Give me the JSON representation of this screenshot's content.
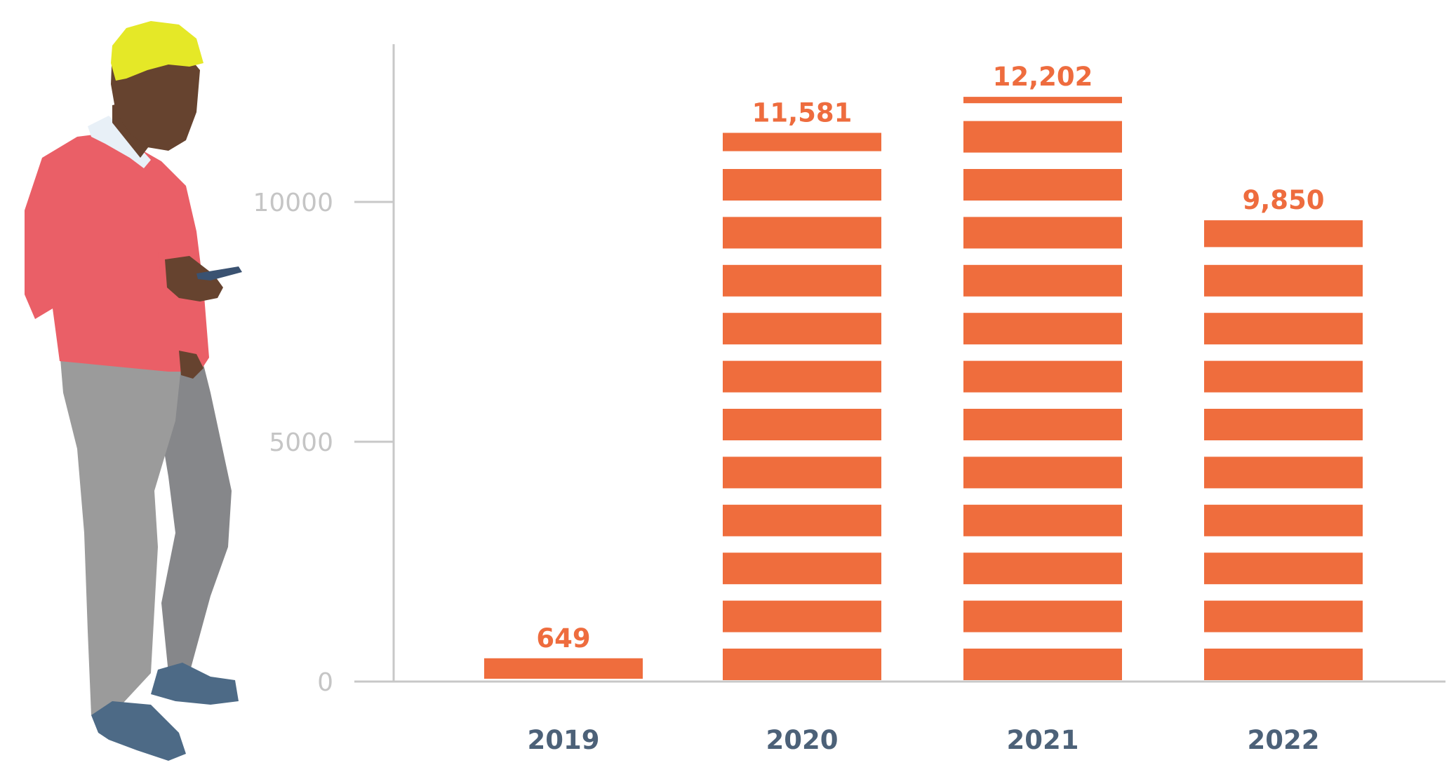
{
  "chart_data": {
    "type": "bar",
    "categories": [
      "2019",
      "2020",
      "2021",
      "2022"
    ],
    "values": [
      649,
      11581,
      12202,
      9850
    ],
    "value_labels": [
      "649",
      "11,581",
      "12,202",
      "9,850"
    ],
    "y_ticks": [
      {
        "value": 0,
        "label": "0"
      },
      {
        "value": 5000,
        "label": "5000"
      },
      {
        "value": 10000,
        "label": "10000"
      }
    ],
    "ylim": [
      0,
      13500
    ],
    "title": "",
    "xlabel": "",
    "ylabel": "",
    "grid": false,
    "bar_style": "stacked-stripes",
    "stripe_unit": 1000
  },
  "colors": {
    "bar": "#ef6d3d",
    "axis": "#c8c8c8",
    "tick_text": "#c5c5c5",
    "year_text": "#4c6178",
    "value_text": "#ee6c3e",
    "hair": "#e5e827",
    "skin": "#66432f",
    "sweater": "#ea5f67",
    "pants": "#9b9b9b",
    "shoes": "#4d6a86",
    "collar": "#e8f0f7",
    "phone": "#3a5271"
  },
  "illustration": {
    "icon": "person-with-phone-icon"
  }
}
